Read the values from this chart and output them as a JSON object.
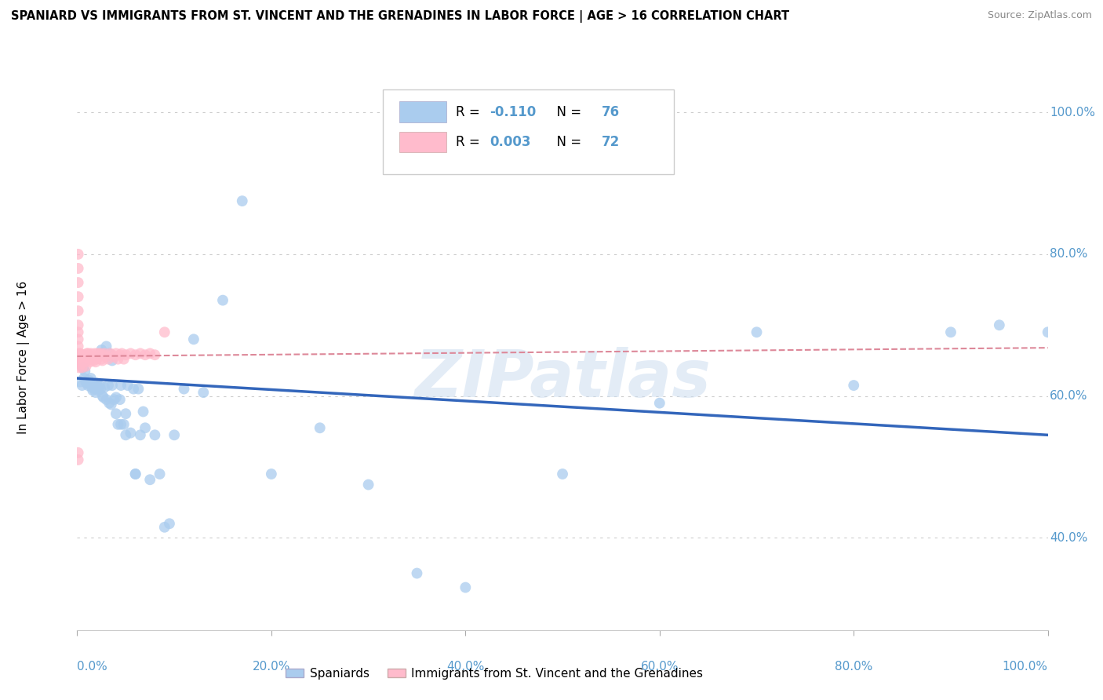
{
  "title": "SPANIARD VS IMMIGRANTS FROM ST. VINCENT AND THE GRENADINES IN LABOR FORCE | AGE > 16 CORRELATION CHART",
  "source": "Source: ZipAtlas.com",
  "ylabel": "In Labor Force | Age > 16",
  "r_blue": -0.11,
  "n_blue": 76,
  "r_pink": 0.003,
  "n_pink": 72,
  "blue_color": "#aaccee",
  "pink_color": "#ffbbcc",
  "trendline_blue_color": "#3366bb",
  "trendline_pink_color": "#dd8899",
  "watermark": "ZIPatlas",
  "legend_label_blue": "Spaniards",
  "legend_label_pink": "Immigrants from St. Vincent and the Grenadines",
  "blue_x": [
    0.003,
    0.005,
    0.006,
    0.007,
    0.008,
    0.009,
    0.01,
    0.011,
    0.012,
    0.013,
    0.014,
    0.015,
    0.016,
    0.017,
    0.018,
    0.019,
    0.02,
    0.021,
    0.022,
    0.023,
    0.024,
    0.025,
    0.026,
    0.027,
    0.028,
    0.03,
    0.032,
    0.033,
    0.035,
    0.036,
    0.038,
    0.04,
    0.042,
    0.044,
    0.045,
    0.048,
    0.05,
    0.052,
    0.055,
    0.058,
    0.06,
    0.063,
    0.065,
    0.068,
    0.07,
    0.075,
    0.08,
    0.085,
    0.09,
    0.095,
    0.1,
    0.11,
    0.12,
    0.13,
    0.15,
    0.17,
    0.2,
    0.25,
    0.3,
    0.35,
    0.4,
    0.5,
    0.6,
    0.7,
    0.8,
    0.9,
    0.95,
    1.0,
    0.025,
    0.03,
    0.033,
    0.036,
    0.04,
    0.045,
    0.05,
    0.06
  ],
  "blue_y": [
    0.62,
    0.615,
    0.64,
    0.625,
    0.635,
    0.62,
    0.618,
    0.615,
    0.622,
    0.618,
    0.625,
    0.612,
    0.608,
    0.615,
    0.61,
    0.605,
    0.618,
    0.612,
    0.608,
    0.615,
    0.61,
    0.665,
    0.6,
    0.598,
    0.612,
    0.595,
    0.615,
    0.59,
    0.588,
    0.615,
    0.595,
    0.598,
    0.56,
    0.595,
    0.615,
    0.56,
    0.575,
    0.615,
    0.548,
    0.61,
    0.49,
    0.61,
    0.545,
    0.578,
    0.555,
    0.482,
    0.545,
    0.49,
    0.415,
    0.42,
    0.545,
    0.61,
    0.68,
    0.605,
    0.735,
    0.875,
    0.49,
    0.555,
    0.475,
    0.35,
    0.33,
    0.49,
    0.59,
    0.69,
    0.615,
    0.69,
    0.7,
    0.69,
    0.66,
    0.67,
    0.66,
    0.65,
    0.575,
    0.56,
    0.545,
    0.49
  ],
  "pink_x": [
    0.001,
    0.001,
    0.001,
    0.001,
    0.001,
    0.001,
    0.001,
    0.001,
    0.001,
    0.001,
    0.001,
    0.001,
    0.002,
    0.002,
    0.002,
    0.002,
    0.002,
    0.003,
    0.003,
    0.003,
    0.003,
    0.004,
    0.004,
    0.004,
    0.005,
    0.005,
    0.005,
    0.006,
    0.006,
    0.007,
    0.007,
    0.008,
    0.008,
    0.009,
    0.01,
    0.01,
    0.011,
    0.012,
    0.013,
    0.014,
    0.015,
    0.016,
    0.017,
    0.018,
    0.019,
    0.02,
    0.021,
    0.022,
    0.023,
    0.024,
    0.025,
    0.026,
    0.027,
    0.028,
    0.03,
    0.032,
    0.034,
    0.036,
    0.038,
    0.04,
    0.042,
    0.044,
    0.046,
    0.048,
    0.05,
    0.055,
    0.06,
    0.065,
    0.07,
    0.075,
    0.08,
    0.09
  ],
  "pink_y": [
    0.67,
    0.655,
    0.69,
    0.68,
    0.8,
    0.78,
    0.76,
    0.74,
    0.72,
    0.7,
    0.51,
    0.52,
    0.648,
    0.66,
    0.655,
    0.64,
    0.652,
    0.65,
    0.655,
    0.658,
    0.66,
    0.648,
    0.655,
    0.645,
    0.652,
    0.64,
    0.65,
    0.655,
    0.648,
    0.658,
    0.652,
    0.648,
    0.655,
    0.642,
    0.66,
    0.65,
    0.66,
    0.652,
    0.648,
    0.66,
    0.655,
    0.652,
    0.65,
    0.66,
    0.648,
    0.652,
    0.66,
    0.655,
    0.658,
    0.66,
    0.652,
    0.65,
    0.658,
    0.66,
    0.655,
    0.652,
    0.66,
    0.658,
    0.655,
    0.66,
    0.652,
    0.658,
    0.66,
    0.652,
    0.658,
    0.66,
    0.658,
    0.66,
    0.658,
    0.66,
    0.658,
    0.69
  ],
  "xlim": [
    0.0,
    1.0
  ],
  "ylim": [
    0.27,
    1.04
  ],
  "y_ticks": [
    0.4,
    0.6,
    0.8,
    1.0
  ],
  "y_tick_labels": [
    "40.0%",
    "60.0%",
    "80.0%",
    "100.0%"
  ],
  "x_ticks": [
    0.0,
    0.2,
    0.4,
    0.6,
    0.8,
    1.0
  ],
  "x_tick_labels": [
    "0.0%",
    "20.0%",
    "40.0%",
    "60.0%",
    "80.0%",
    "100.0%"
  ],
  "grid_color": "#cccccc",
  "background_color": "#ffffff",
  "axis_color": "#5599cc",
  "trendline_blue_start_y": 0.625,
  "trendline_blue_end_y": 0.545,
  "trendline_pink_start_y": 0.656,
  "trendline_pink_end_y": 0.668
}
